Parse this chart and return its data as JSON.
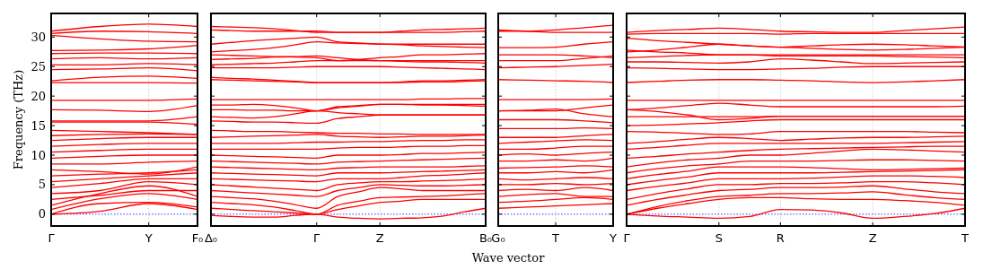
{
  "chart_data": [
    {
      "type": "line",
      "color": "#ff0000",
      "ylabel": "Frequency (THz)",
      "categories": [
        "Γ",
        null,
        "Y",
        "F₀"
      ],
      "ylim": [
        -2,
        34
      ],
      "yticks": [
        0,
        5,
        10,
        15,
        20,
        25,
        30
      ],
      "ref_lines": [
        {
          "axis": "y",
          "value": 0,
          "color": "#0000ff",
          "line_style": "dotted"
        },
        {
          "axis": "x",
          "value": "Y",
          "color": "#bbbbbb",
          "line_style": "dotted"
        }
      ],
      "series": [
        {
          "values": [
            0,
            0.5,
            1.8,
            0.8
          ]
        },
        {
          "values": [
            0,
            1.8,
            2,
            1.2
          ]
        },
        {
          "values": [
            0.8,
            2.6,
            3.5,
            2.5
          ]
        },
        {
          "values": [
            1.5,
            3.5,
            4.8,
            3
          ]
        },
        {
          "values": [
            2.5,
            3.2,
            4,
            4
          ]
        },
        {
          "values": [
            3.5,
            4,
            5.5,
            5
          ]
        },
        {
          "values": [
            4.5,
            5.2,
            6,
            6
          ]
        },
        {
          "values": [
            5.5,
            6,
            6.5,
            7
          ]
        },
        {
          "values": [
            6.5,
            6.8,
            7,
            7.5
          ]
        },
        {
          "values": [
            7.5,
            7.2,
            6.8,
            8
          ]
        },
        {
          "values": [
            8.5,
            8.5,
            8.8,
            9
          ]
        },
        {
          "values": [
            9.5,
            9.8,
            10,
            10
          ]
        },
        {
          "values": [
            10.5,
            10.8,
            11,
            11
          ]
        },
        {
          "values": [
            11.5,
            11.8,
            12,
            12
          ]
        },
        {
          "values": [
            12.5,
            12.8,
            13,
            13
          ]
        },
        {
          "values": [
            13.3,
            13.5,
            13.6,
            13.5
          ]
        },
        {
          "values": [
            14.2,
            14,
            13.8,
            13.5
          ]
        },
        {
          "values": [
            15.6,
            15.6,
            15.6,
            15.2
          ]
        },
        {
          "values": [
            15.8,
            15.8,
            15.8,
            16.5
          ]
        },
        {
          "values": [
            17.7,
            17.6,
            17.4,
            18.4
          ]
        },
        {
          "values": [
            19.3,
            19.3,
            19.3,
            19.5
          ]
        },
        {
          "values": [
            22.3,
            22.3,
            22.3,
            22.2
          ]
        },
        {
          "values": [
            22.6,
            23.2,
            23.4,
            23
          ]
        },
        {
          "values": [
            24.5,
            24.6,
            24.8,
            24.3
          ]
        },
        {
          "values": [
            25.3,
            25.3,
            25.5,
            25.3
          ]
        },
        {
          "values": [
            26.3,
            26.5,
            26.3,
            26.5
          ]
        },
        {
          "values": [
            27.2,
            27.3,
            27.3,
            27.2
          ]
        },
        {
          "values": [
            27.7,
            27.8,
            28,
            28.6
          ]
        },
        {
          "values": [
            30.3,
            29.7,
            29.3,
            29.2
          ]
        },
        {
          "values": [
            30.6,
            31,
            30.9,
            30.6
          ]
        },
        {
          "values": [
            31,
            31.8,
            32.2,
            31.8
          ]
        }
      ]
    },
    {
      "type": "line",
      "color": "#ff0000",
      "tick_labels": "x",
      "categories": [
        "Δ₀",
        null,
        null,
        null,
        null,
        "Γ",
        null,
        null,
        "Z",
        null,
        null,
        null,
        null,
        "B₀"
      ],
      "ylim": [
        -2,
        34
      ],
      "yticks": [
        0,
        5,
        10,
        15,
        20,
        25,
        30
      ],
      "grid": "x",
      "ref_lines": [
        {
          "axis": "y",
          "value": 0,
          "color": "#0000ff",
          "line_style": "dotted"
        }
      ],
      "series": [
        {
          "values": [
            -0.2,
            -0.4,
            -0.5,
            -0.5,
            -0.2,
            0,
            -0.5,
            -0.7,
            -0.8,
            -0.7,
            -0.6,
            -0.3,
            0.4,
            1
          ]
        },
        {
          "values": [
            1,
            0.8,
            0.6,
            0.4,
            0.2,
            0,
            0.8,
            1.4,
            2,
            2.2,
            2.5,
            2.5,
            2.5,
            2.5
          ]
        },
        {
          "values": [
            2,
            1.8,
            1.6,
            1.2,
            0.6,
            0,
            1.5,
            2.2,
            2.8,
            2.9,
            3,
            3.1,
            3.3,
            3.5
          ]
        },
        {
          "values": [
            3,
            2.8,
            2.6,
            2.2,
            1.6,
            1,
            3,
            3.8,
            4.5,
            4.3,
            4,
            4,
            4,
            4
          ]
        },
        {
          "values": [
            4,
            3.8,
            3.6,
            3.4,
            3.2,
            3,
            4,
            4.5,
            5,
            4.9,
            4.8,
            4.8,
            4.9,
            5
          ]
        },
        {
          "values": [
            5,
            4.8,
            4.6,
            4.4,
            4.2,
            4,
            5,
            5.3,
            5.5,
            5.5,
            5.6,
            5.7,
            5.8,
            6
          ]
        },
        {
          "values": [
            6,
            5.9,
            5.8,
            5.7,
            5.6,
            5.5,
            6,
            6,
            6,
            6.2,
            6.5,
            6.6,
            6.8,
            7
          ]
        },
        {
          "values": [
            7,
            6.9,
            6.8,
            6.7,
            6.6,
            6.5,
            7,
            7,
            7,
            7.1,
            7.2,
            7.3,
            7.4,
            7.5
          ]
        },
        {
          "values": [
            8,
            7.9,
            7.8,
            7.7,
            7.6,
            7.5,
            7.8,
            7.9,
            8,
            8,
            8,
            8,
            8.1,
            8.2
          ]
        },
        {
          "values": [
            9,
            8.9,
            8.8,
            8.7,
            8.6,
            8.5,
            8.8,
            8.9,
            9,
            9.1,
            9.2,
            9.3,
            9.4,
            9.5
          ]
        },
        {
          "values": [
            10,
            9.9,
            9.8,
            9.7,
            9.6,
            9.5,
            10,
            10,
            10,
            10.1,
            10.3,
            10.3,
            10.4,
            10.5
          ]
        },
        {
          "values": [
            11,
            11,
            11,
            11,
            11,
            11,
            11.2,
            11.3,
            11.3,
            11.4,
            11.5,
            11.5,
            11.6,
            11.6
          ]
        },
        {
          "values": [
            12,
            12,
            12,
            12,
            12.1,
            12.2,
            12.2,
            12.3,
            12.3,
            12.4,
            12.5,
            12.5,
            12.6,
            12.6
          ]
        },
        {
          "values": [
            13,
            13.1,
            13.2,
            13.3,
            13.4,
            13.5,
            13.2,
            13.1,
            13,
            13.1,
            13.2,
            13.2,
            13.3,
            13.4
          ]
        },
        {
          "values": [
            14.2,
            14.1,
            14,
            14,
            13.9,
            13.8,
            13.7,
            13.7,
            13.6,
            13.6,
            13.5,
            13.5,
            13.5,
            13.5
          ]
        },
        {
          "values": [
            15.8,
            15.7,
            15.6,
            15.6,
            15.5,
            15.4,
            16.2,
            16.5,
            16.8,
            16.8,
            16.8,
            16.8,
            16.8,
            16.8
          ]
        },
        {
          "values": [
            16.5,
            16.4,
            16.3,
            16.5,
            17,
            17.5,
            17.2,
            17,
            16.8,
            16.8,
            16.8,
            16.8,
            16.8,
            16.8
          ]
        },
        {
          "values": [
            17.7,
            17.7,
            17.6,
            17.6,
            17.5,
            17.5,
            18,
            18.3,
            18.6,
            18.6,
            18.5,
            18.5,
            18.4,
            18.3
          ]
        },
        {
          "values": [
            18.5,
            18.5,
            18.6,
            18.4,
            18,
            17.5,
            18.2,
            18.4,
            18.6,
            18.6,
            18.6,
            18.6,
            18.6,
            18.6
          ]
        },
        {
          "values": [
            19.4,
            19.4,
            19.4,
            19.4,
            19.4,
            19.4,
            19.4,
            19.4,
            19.4,
            19.4,
            19.5,
            19.5,
            19.6,
            19.6
          ]
        },
        {
          "values": [
            22.8,
            22.7,
            22.6,
            22.5,
            22.4,
            22.3,
            22.3,
            22.3,
            22.3,
            22.4,
            22.6,
            22.6,
            22.7,
            22.8
          ]
        },
        {
          "values": [
            23.2,
            23,
            22.9,
            22.7,
            22.5,
            22.3,
            22.3,
            22.3,
            22.3,
            22.3,
            22.4,
            22.4,
            22.5,
            22.6
          ]
        },
        {
          "values": [
            24.8,
            24.8,
            24.8,
            24.8,
            24.9,
            25,
            25,
            25,
            25,
            24.9,
            24.8,
            24.7,
            24.6,
            24.5
          ]
        },
        {
          "values": [
            25.3,
            25.4,
            25.5,
            25.6,
            25.8,
            26,
            26,
            26,
            26,
            25.9,
            25.8,
            25.8,
            25.7,
            25.6
          ]
        },
        {
          "values": [
            26.2,
            26.3,
            26.4,
            26.6,
            26.7,
            26.8,
            26.5,
            26.2,
            26,
            26,
            26,
            26,
            26,
            26
          ]
        },
        {
          "values": [
            27,
            26.9,
            26.8,
            26.7,
            26.6,
            26.5,
            26,
            26.2,
            26.5,
            26.7,
            27,
            27,
            27.1,
            27.2
          ]
        },
        {
          "values": [
            28.8,
            29.1,
            29.4,
            29.6,
            29.8,
            30,
            29.2,
            29,
            28.8,
            28.8,
            28.8,
            28.8,
            28.8,
            28.8
          ]
        },
        {
          "values": [
            27.5,
            27.7,
            27.9,
            28.2,
            28.7,
            29.2,
            29,
            28.9,
            28.8,
            28.7,
            28.5,
            28.4,
            28.3,
            28.2
          ]
        },
        {
          "values": [
            31.8,
            31.7,
            31.6,
            31.4,
            31.1,
            30.8,
            30.8,
            30.8,
            30.8,
            31,
            31.2,
            31.3,
            31.4,
            31.5
          ]
        },
        {
          "values": [
            31.2,
            31.1,
            31,
            31,
            31,
            31,
            30.8,
            30.8,
            30.8,
            30.8,
            30.8,
            30.8,
            30.9,
            31
          ]
        }
      ]
    },
    {
      "type": "line",
      "color": "#ff0000",
      "tick_labels": "x",
      "categories": [
        "G₀",
        null,
        "T",
        null,
        "Y"
      ],
      "ylim": [
        -2,
        34
      ],
      "yticks": [
        0,
        5,
        10,
        15,
        20,
        25,
        30
      ],
      "xlabel": "Wave vector",
      "ref_lines": [
        {
          "axis": "y",
          "value": 0,
          "color": "#0000ff",
          "line_style": "dotted"
        },
        {
          "axis": "x",
          "value": "T",
          "color": "#bbbbbb",
          "line_style": "dotted"
        }
      ],
      "series": [
        {
          "values": [
            1,
            1.2,
            1.4,
            1.6,
            1.8
          ]
        },
        {
          "values": [
            2,
            2.2,
            2.5,
            2.8,
            2.5
          ]
        },
        {
          "values": [
            3,
            3.3,
            3.5,
            3,
            3
          ]
        },
        {
          "values": [
            4,
            4.2,
            4,
            4.5,
            4
          ]
        },
        {
          "values": [
            5,
            5,
            5.2,
            5,
            5.2
          ]
        },
        {
          "values": [
            6,
            5.8,
            6,
            6.2,
            6
          ]
        },
        {
          "values": [
            7,
            7,
            7.2,
            7,
            7.5
          ]
        },
        {
          "values": [
            7.8,
            7.9,
            8,
            8.2,
            8
          ]
        },
        {
          "values": [
            9,
            9,
            9.2,
            9,
            9.5
          ]
        },
        {
          "values": [
            10,
            10.2,
            10,
            10.3,
            10.5
          ]
        },
        {
          "values": [
            11,
            11,
            11.2,
            11.5,
            11.5
          ]
        },
        {
          "values": [
            12,
            12.2,
            12.4,
            12.6,
            12.5
          ]
        },
        {
          "values": [
            13,
            13,
            13,
            13.3,
            13.5
          ]
        },
        {
          "values": [
            14.5,
            14.5,
            14.5,
            14.6,
            14.5
          ]
        },
        {
          "values": [
            16,
            16,
            16,
            15.8,
            15.5
          ]
        },
        {
          "values": [
            17.5,
            17.5,
            17.5,
            18,
            18.5
          ]
        },
        {
          "values": [
            17.5,
            17.6,
            17.8,
            17,
            16.5
          ]
        },
        {
          "values": [
            19.4,
            19.4,
            19.4,
            19.4,
            19.5
          ]
        },
        {
          "values": [
            22.8,
            22.7,
            22.6,
            22.5,
            22.3
          ]
        },
        {
          "values": [
            24.8,
            24.9,
            25,
            25.2,
            25.4
          ]
        },
        {
          "values": [
            26,
            26,
            26,
            26.4,
            26.8
          ]
        },
        {
          "values": [
            27,
            27,
            27,
            26.8,
            26.5
          ]
        },
        {
          "values": [
            28.2,
            28.2,
            28.3,
            28.8,
            29.2
          ]
        },
        {
          "values": [
            31,
            31,
            31.2,
            31.6,
            32
          ]
        },
        {
          "values": [
            31.2,
            31,
            30.8,
            30.8,
            30.8
          ]
        }
      ]
    },
    {
      "type": "line",
      "color": "#ff0000",
      "tick_labels": "x",
      "categories": [
        "Γ",
        null,
        null,
        "S",
        null,
        "R",
        null,
        null,
        "Z",
        null,
        null,
        "T"
      ],
      "ylim": [
        -2,
        34
      ],
      "yticks": [
        0,
        5,
        10,
        15,
        20,
        25,
        30
      ],
      "grid": "x",
      "ref_lines": [
        {
          "axis": "y",
          "value": 0,
          "color": "#0000ff",
          "line_style": "dotted"
        }
      ],
      "series": [
        {
          "values": [
            0,
            -0.3,
            -0.5,
            -0.7,
            -0.4,
            0.8,
            0.7,
            0.2,
            -0.7,
            -0.4,
            0.1,
            1
          ]
        },
        {
          "values": [
            0,
            1,
            1.8,
            2.5,
            2.8,
            2.8,
            2.6,
            2.5,
            2.5,
            2.3,
            2,
            1.5
          ]
        },
        {
          "values": [
            0,
            1.3,
            2.3,
            3,
            3.2,
            3.5,
            3.5,
            3.6,
            3.8,
            3.3,
            2.8,
            2.5
          ]
        },
        {
          "values": [
            1.5,
            2.5,
            3.3,
            4,
            4.2,
            4.5,
            4.5,
            4.6,
            4.8,
            4.3,
            3.8,
            3.5
          ]
        },
        {
          "values": [
            2.5,
            3.5,
            4.3,
            5,
            5,
            5.2,
            5.2,
            5.3,
            5.5,
            5.5,
            5.3,
            5
          ]
        },
        {
          "values": [
            4,
            4.7,
            5.3,
            6,
            6,
            6,
            6.1,
            6.3,
            6.5,
            6.5,
            6.4,
            6.2
          ]
        },
        {
          "values": [
            5,
            5.7,
            6.3,
            7,
            7,
            7,
            7,
            7.1,
            7.2,
            7.3,
            7.4,
            7.5
          ]
        },
        {
          "values": [
            6,
            6.7,
            7.3,
            8,
            8,
            8,
            7.9,
            7.7,
            7.5,
            7.6,
            7.7,
            7.8
          ]
        },
        {
          "values": [
            7,
            7.7,
            8.2,
            8.5,
            9,
            9,
            9,
            9.1,
            9.2,
            9.2,
            9.1,
            9
          ]
        },
        {
          "values": [
            8,
            8.7,
            9.2,
            9.5,
            10,
            10,
            10.3,
            10.7,
            11,
            10.9,
            10.7,
            10.5
          ]
        },
        {
          "values": [
            9.5,
            9.8,
            10.2,
            10.5,
            10.8,
            11,
            11.1,
            11.2,
            11.3,
            11.4,
            11.5,
            11.5
          ]
        },
        {
          "values": [
            11,
            11.3,
            11.7,
            12,
            12,
            12,
            12,
            12,
            12,
            12.1,
            12.2,
            12.3
          ]
        },
        {
          "values": [
            12,
            12.3,
            12.7,
            13,
            12.8,
            12.5,
            12.7,
            12.9,
            13,
            13,
            13.1,
            13.2
          ]
        },
        {
          "values": [
            14,
            13.9,
            13.7,
            13.5,
            13.6,
            14,
            14,
            14,
            14,
            14,
            13.9,
            13.8
          ]
        },
        {
          "values": [
            15,
            15.1,
            15.3,
            15.5,
            15.8,
            16,
            16,
            16,
            16,
            16,
            16,
            16
          ]
        },
        {
          "values": [
            16.5,
            16.5,
            16.5,
            16.5,
            16.5,
            16.6,
            16.6,
            16.6,
            16.6,
            16.6,
            16.6,
            16.6
          ]
        },
        {
          "values": [
            17.7,
            17.4,
            16.8,
            16,
            16.2,
            16.6,
            16.6,
            16.6,
            16.6,
            16.6,
            16.6,
            16.6
          ]
        },
        {
          "values": [
            17.7,
            18,
            18.4,
            18.8,
            18.5,
            18.2,
            18.2,
            18.2,
            18.2,
            18.2,
            18.2,
            18.3
          ]
        },
        {
          "values": [
            19.3,
            19.3,
            19.3,
            19.3,
            19.3,
            19.3,
            19.3,
            19.3,
            19.3,
            19.3,
            19.3,
            19.3
          ]
        },
        {
          "values": [
            22.3,
            22.5,
            22.7,
            22.8,
            22.8,
            22.7,
            22.6,
            22.4,
            22.3,
            22.4,
            22.6,
            22.8
          ]
        },
        {
          "values": [
            24.8,
            24.7,
            24.6,
            24.5,
            24.5,
            24.6,
            24.7,
            24.9,
            25,
            25,
            25,
            25
          ]
        },
        {
          "values": [
            25.8,
            25.8,
            25.7,
            25.6,
            25.8,
            26.3,
            26.1,
            25.8,
            25.5,
            25.6,
            25.7,
            25.8
          ]
        },
        {
          "values": [
            26.5,
            26.7,
            26.9,
            27,
            27,
            26.8,
            26.8,
            26.8,
            26.8,
            26.7,
            26.6,
            26.5
          ]
        },
        {
          "values": [
            27.8,
            27.5,
            27.3,
            27,
            27,
            27,
            27,
            27,
            27,
            27,
            27,
            27
          ]
        },
        {
          "values": [
            29.8,
            29.4,
            29.1,
            28.8,
            28.5,
            28.3,
            28.5,
            28.7,
            28.8,
            28.7,
            28.5,
            28.3
          ]
        },
        {
          "values": [
            27.5,
            27.8,
            28.3,
            28.8,
            28.5,
            28.3,
            28.1,
            27.9,
            27.8,
            27.9,
            28.1,
            28.3
          ]
        },
        {
          "values": [
            30.5,
            30.6,
            30.6,
            30.6,
            30.6,
            30.5,
            30.6,
            30.6,
            30.6,
            30.6,
            30.6,
            30.6
          ]
        },
        {
          "values": [
            30.8,
            31.1,
            31.3,
            31.5,
            31.3,
            31,
            30.9,
            30.8,
            30.8,
            31.1,
            31.4,
            31.7
          ]
        }
      ]
    }
  ]
}
